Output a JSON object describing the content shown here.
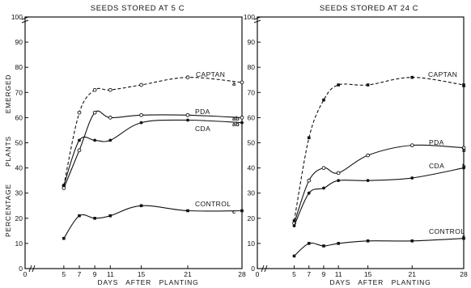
{
  "figure": {
    "ylabel_parts": [
      "PERCENTAGE",
      "PLANTS",
      "EMERGED"
    ]
  },
  "chart_data": [
    {
      "type": "line",
      "title": "SEEDS STORED AT 5 C",
      "xlabel": "DAYS   AFTER   PLANTING",
      "ylabel": "PERCENTAGE   PLANTS   EMERGED",
      "xlim": [
        0,
        28
      ],
      "ylim": [
        0,
        100
      ],
      "x_ticks": [
        0,
        5,
        7,
        9,
        11,
        15,
        21,
        28
      ],
      "y_ticks": [
        0,
        10,
        20,
        30,
        40,
        50,
        60,
        70,
        80,
        90,
        100
      ],
      "grid": false,
      "series": [
        {
          "name": "CAPTAN",
          "significance": "a",
          "style": "dashed",
          "marker": "open-circle",
          "x": [
            5,
            7,
            9,
            11,
            15,
            21,
            28
          ],
          "y": [
            33,
            62,
            71,
            71,
            73,
            76,
            74
          ]
        },
        {
          "name": "PDA",
          "significance": "ab",
          "style": "solid",
          "marker": "open-circle",
          "x": [
            5,
            7,
            9,
            11,
            15,
            21,
            28
          ],
          "y": [
            32,
            47,
            62,
            60,
            61,
            61,
            60
          ]
        },
        {
          "name": "CDA",
          "significance": "ab",
          "style": "solid",
          "marker": "filled-circle",
          "x": [
            5,
            7,
            9,
            11,
            15,
            21,
            28
          ],
          "y": [
            33,
            51,
            51,
            51,
            58,
            59,
            58
          ]
        },
        {
          "name": "CONTROL",
          "significance": "c",
          "style": "solid",
          "marker": "filled-square",
          "x": [
            5,
            7,
            9,
            11,
            15,
            21,
            28
          ],
          "y": [
            12,
            21,
            20,
            21,
            25,
            23,
            23
          ]
        }
      ]
    },
    {
      "type": "line",
      "title": "SEEDS STORED AT 24 C",
      "xlabel": "DAYS   AFTER   PLANTING",
      "ylabel": "PERCENTAGE   PLANTS   EMERGED",
      "xlim": [
        0,
        28
      ],
      "ylim": [
        0,
        100
      ],
      "x_ticks": [
        0,
        5,
        7,
        9,
        11,
        15,
        21,
        28
      ],
      "y_ticks": [
        0,
        10,
        20,
        30,
        40,
        50,
        60,
        70,
        80,
        90,
        100
      ],
      "grid": false,
      "series": [
        {
          "name": "CAPTAN",
          "significance": "a",
          "style": "dashed",
          "marker": "filled-square",
          "x": [
            5,
            7,
            9,
            11,
            15,
            21,
            28
          ],
          "y": [
            19,
            52,
            67,
            73,
            73,
            76,
            73
          ]
        },
        {
          "name": "PDA",
          "significance": "b",
          "style": "solid",
          "marker": "open-circle",
          "x": [
            5,
            7,
            9,
            11,
            15,
            21,
            28
          ],
          "y": [
            18,
            35,
            40,
            38,
            45,
            49,
            48
          ]
        },
        {
          "name": "CDA",
          "significance": "b",
          "style": "solid",
          "marker": "filled-circle",
          "x": [
            5,
            7,
            9,
            11,
            15,
            21,
            28
          ],
          "y": [
            17,
            30,
            32,
            35,
            35,
            36,
            40
          ]
        },
        {
          "name": "CONTROL",
          "significance": "c",
          "style": "solid",
          "marker": "filled-square",
          "x": [
            5,
            7,
            9,
            11,
            15,
            21,
            28
          ],
          "y": [
            5,
            10,
            9,
            10,
            11,
            11,
            12
          ]
        }
      ]
    }
  ]
}
